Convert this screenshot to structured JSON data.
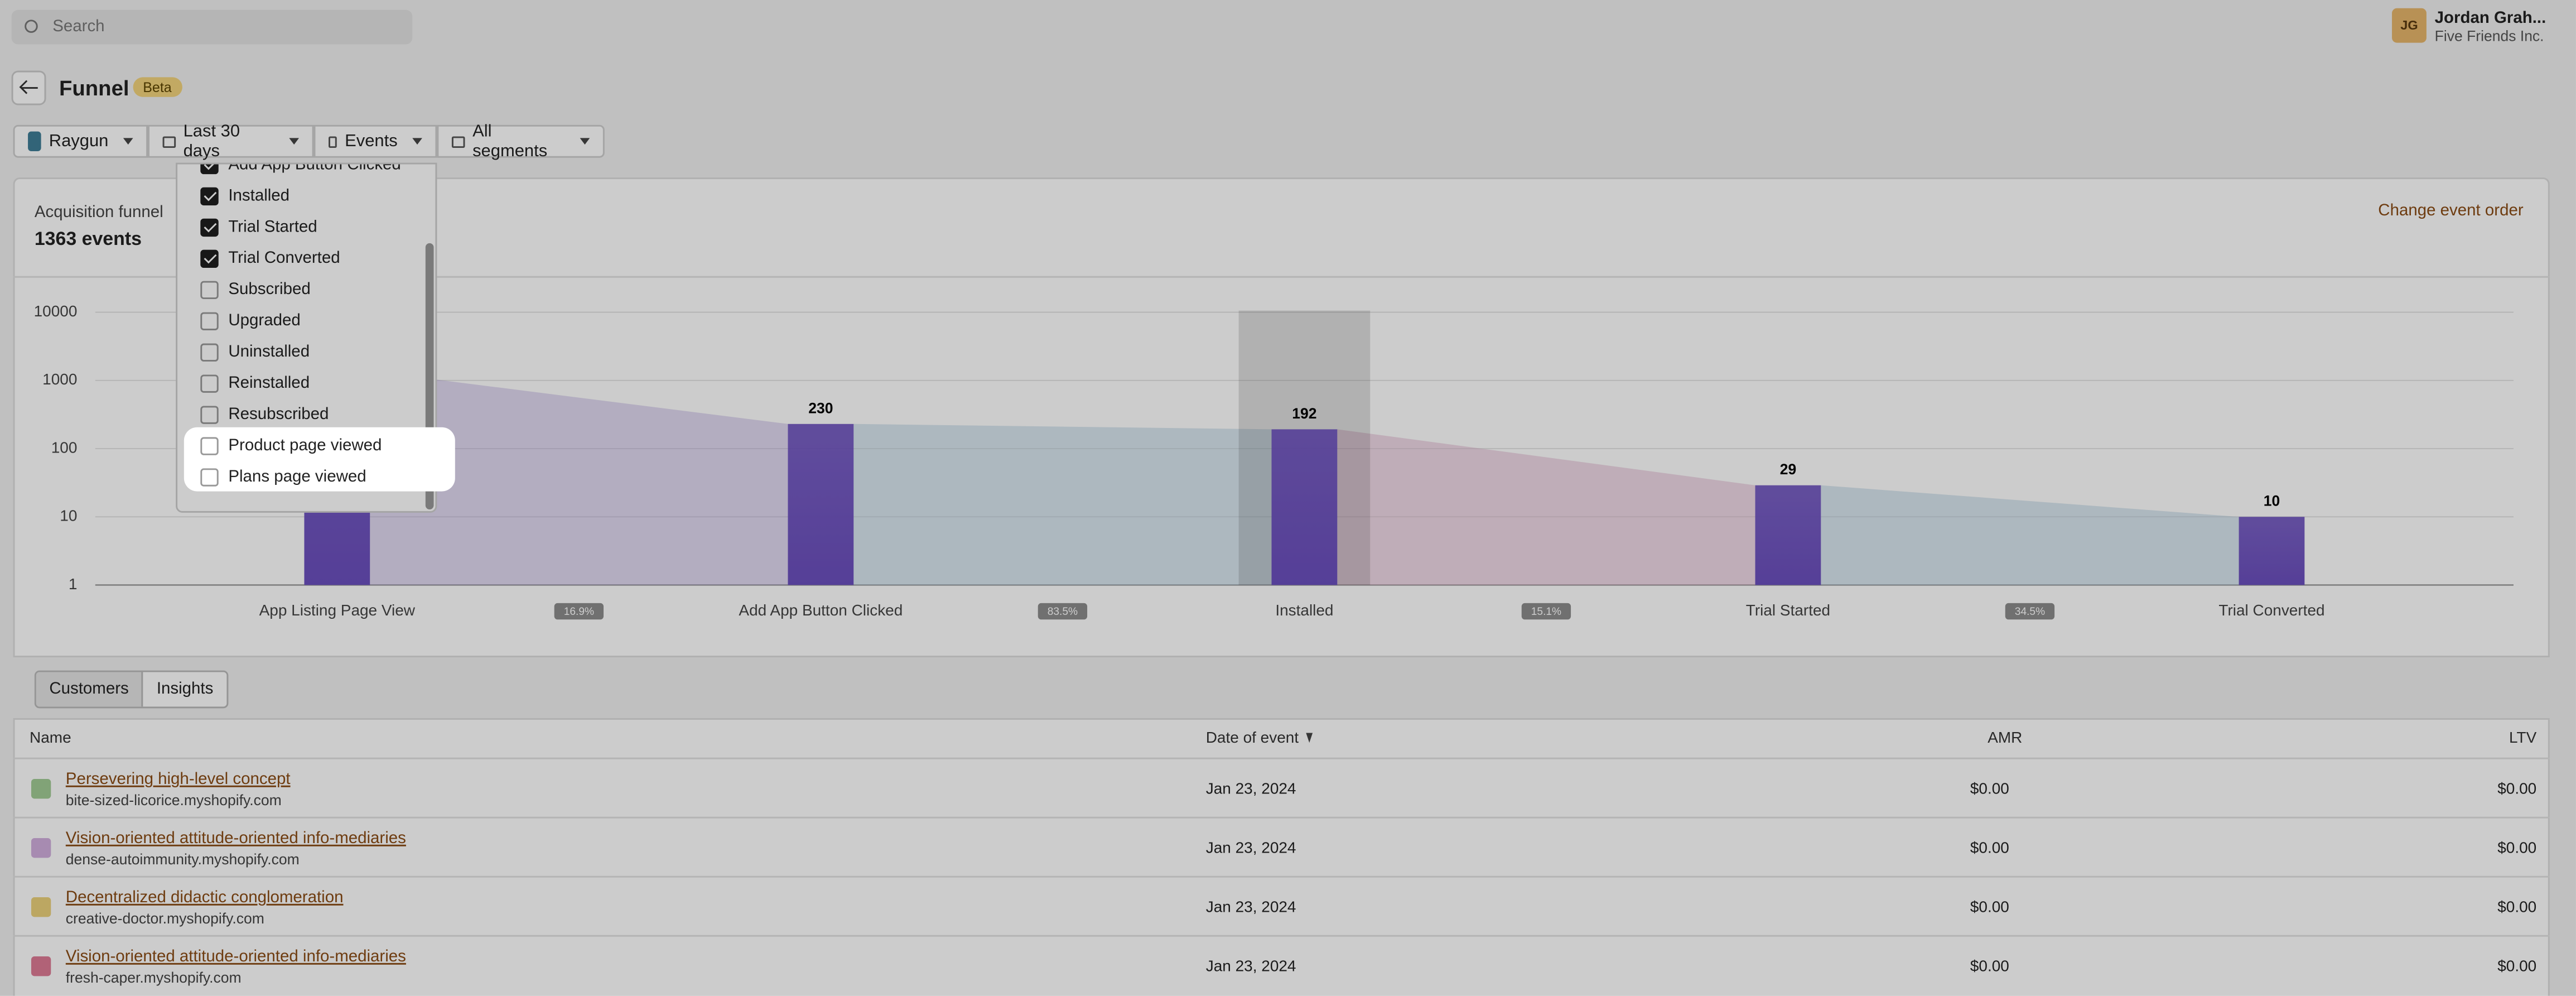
{
  "search_placeholder": "Search",
  "user": {
    "initials": "JG",
    "name": "Jordan Grah...",
    "company": "Five Friends Inc."
  },
  "header": {
    "title": "Funnel",
    "badge": "Beta"
  },
  "filters": [
    "Raygun",
    "Last 30 days",
    "Events",
    "All segments"
  ],
  "event_menu": {
    "items": [
      {
        "label": "Add App Button Clicked",
        "checked": true
      },
      {
        "label": "Installed",
        "checked": true
      },
      {
        "label": "Trial Started",
        "checked": true
      },
      {
        "label": "Trial Converted",
        "checked": true
      },
      {
        "label": "Subscribed",
        "checked": false
      },
      {
        "label": "Upgraded",
        "checked": false
      },
      {
        "label": "Uninstalled",
        "checked": false
      },
      {
        "label": "Reinstalled",
        "checked": false
      },
      {
        "label": "Resubscribed",
        "checked": false
      },
      {
        "label": "Product page viewed",
        "checked": false,
        "highlighted": true
      },
      {
        "label": "Plans page viewed",
        "checked": false,
        "highlighted": true
      }
    ]
  },
  "card": {
    "label": "Acquisition funnel",
    "total": "1363 events",
    "action": "Change event order"
  },
  "chart_data": {
    "type": "bar",
    "categories": [
      "App Listing Page View",
      "Add App Button Clicked",
      "Installed",
      "Trial Started",
      "Trial Converted"
    ],
    "values": [
      1363,
      230,
      192,
      29,
      10
    ],
    "conversion_rates": [
      16.9,
      83.5,
      15.1,
      34.5
    ],
    "conversion_labels": [
      "16.9%",
      "83.5%",
      "15.1%",
      "34.5%"
    ],
    "ylim": [
      1,
      10000
    ],
    "yticks": [
      1,
      10,
      100,
      1000,
      10000
    ],
    "log_scale": true,
    "grid": true,
    "color": "#6b4fbe"
  },
  "tabs": [
    "Customers",
    "Insights"
  ],
  "table": {
    "columns": [
      "Name",
      "Date of event",
      "AMR",
      "LTV"
    ],
    "rows": [
      [
        "Persevering high-level concept",
        "bite-sized-licorice.myshopify.com",
        "Jan 23, 2024",
        "$0.00",
        "$0.00"
      ],
      [
        "Vision-oriented attitude-oriented info-mediaries",
        "dense-autoimmunity.myshopify.com",
        "Jan 23, 2024",
        "$0.00",
        "$0.00"
      ],
      [
        "Decentralized didactic conglomeration",
        "creative-doctor.myshopify.com",
        "Jan 23, 2024",
        "$0.00",
        "$0.00"
      ],
      [
        "Vision-oriented attitude-oriented info-mediaries",
        "fresh-caper.myshopify.com",
        "Jan 23, 2024",
        "$0.00",
        "$0.00"
      ]
    ]
  }
}
